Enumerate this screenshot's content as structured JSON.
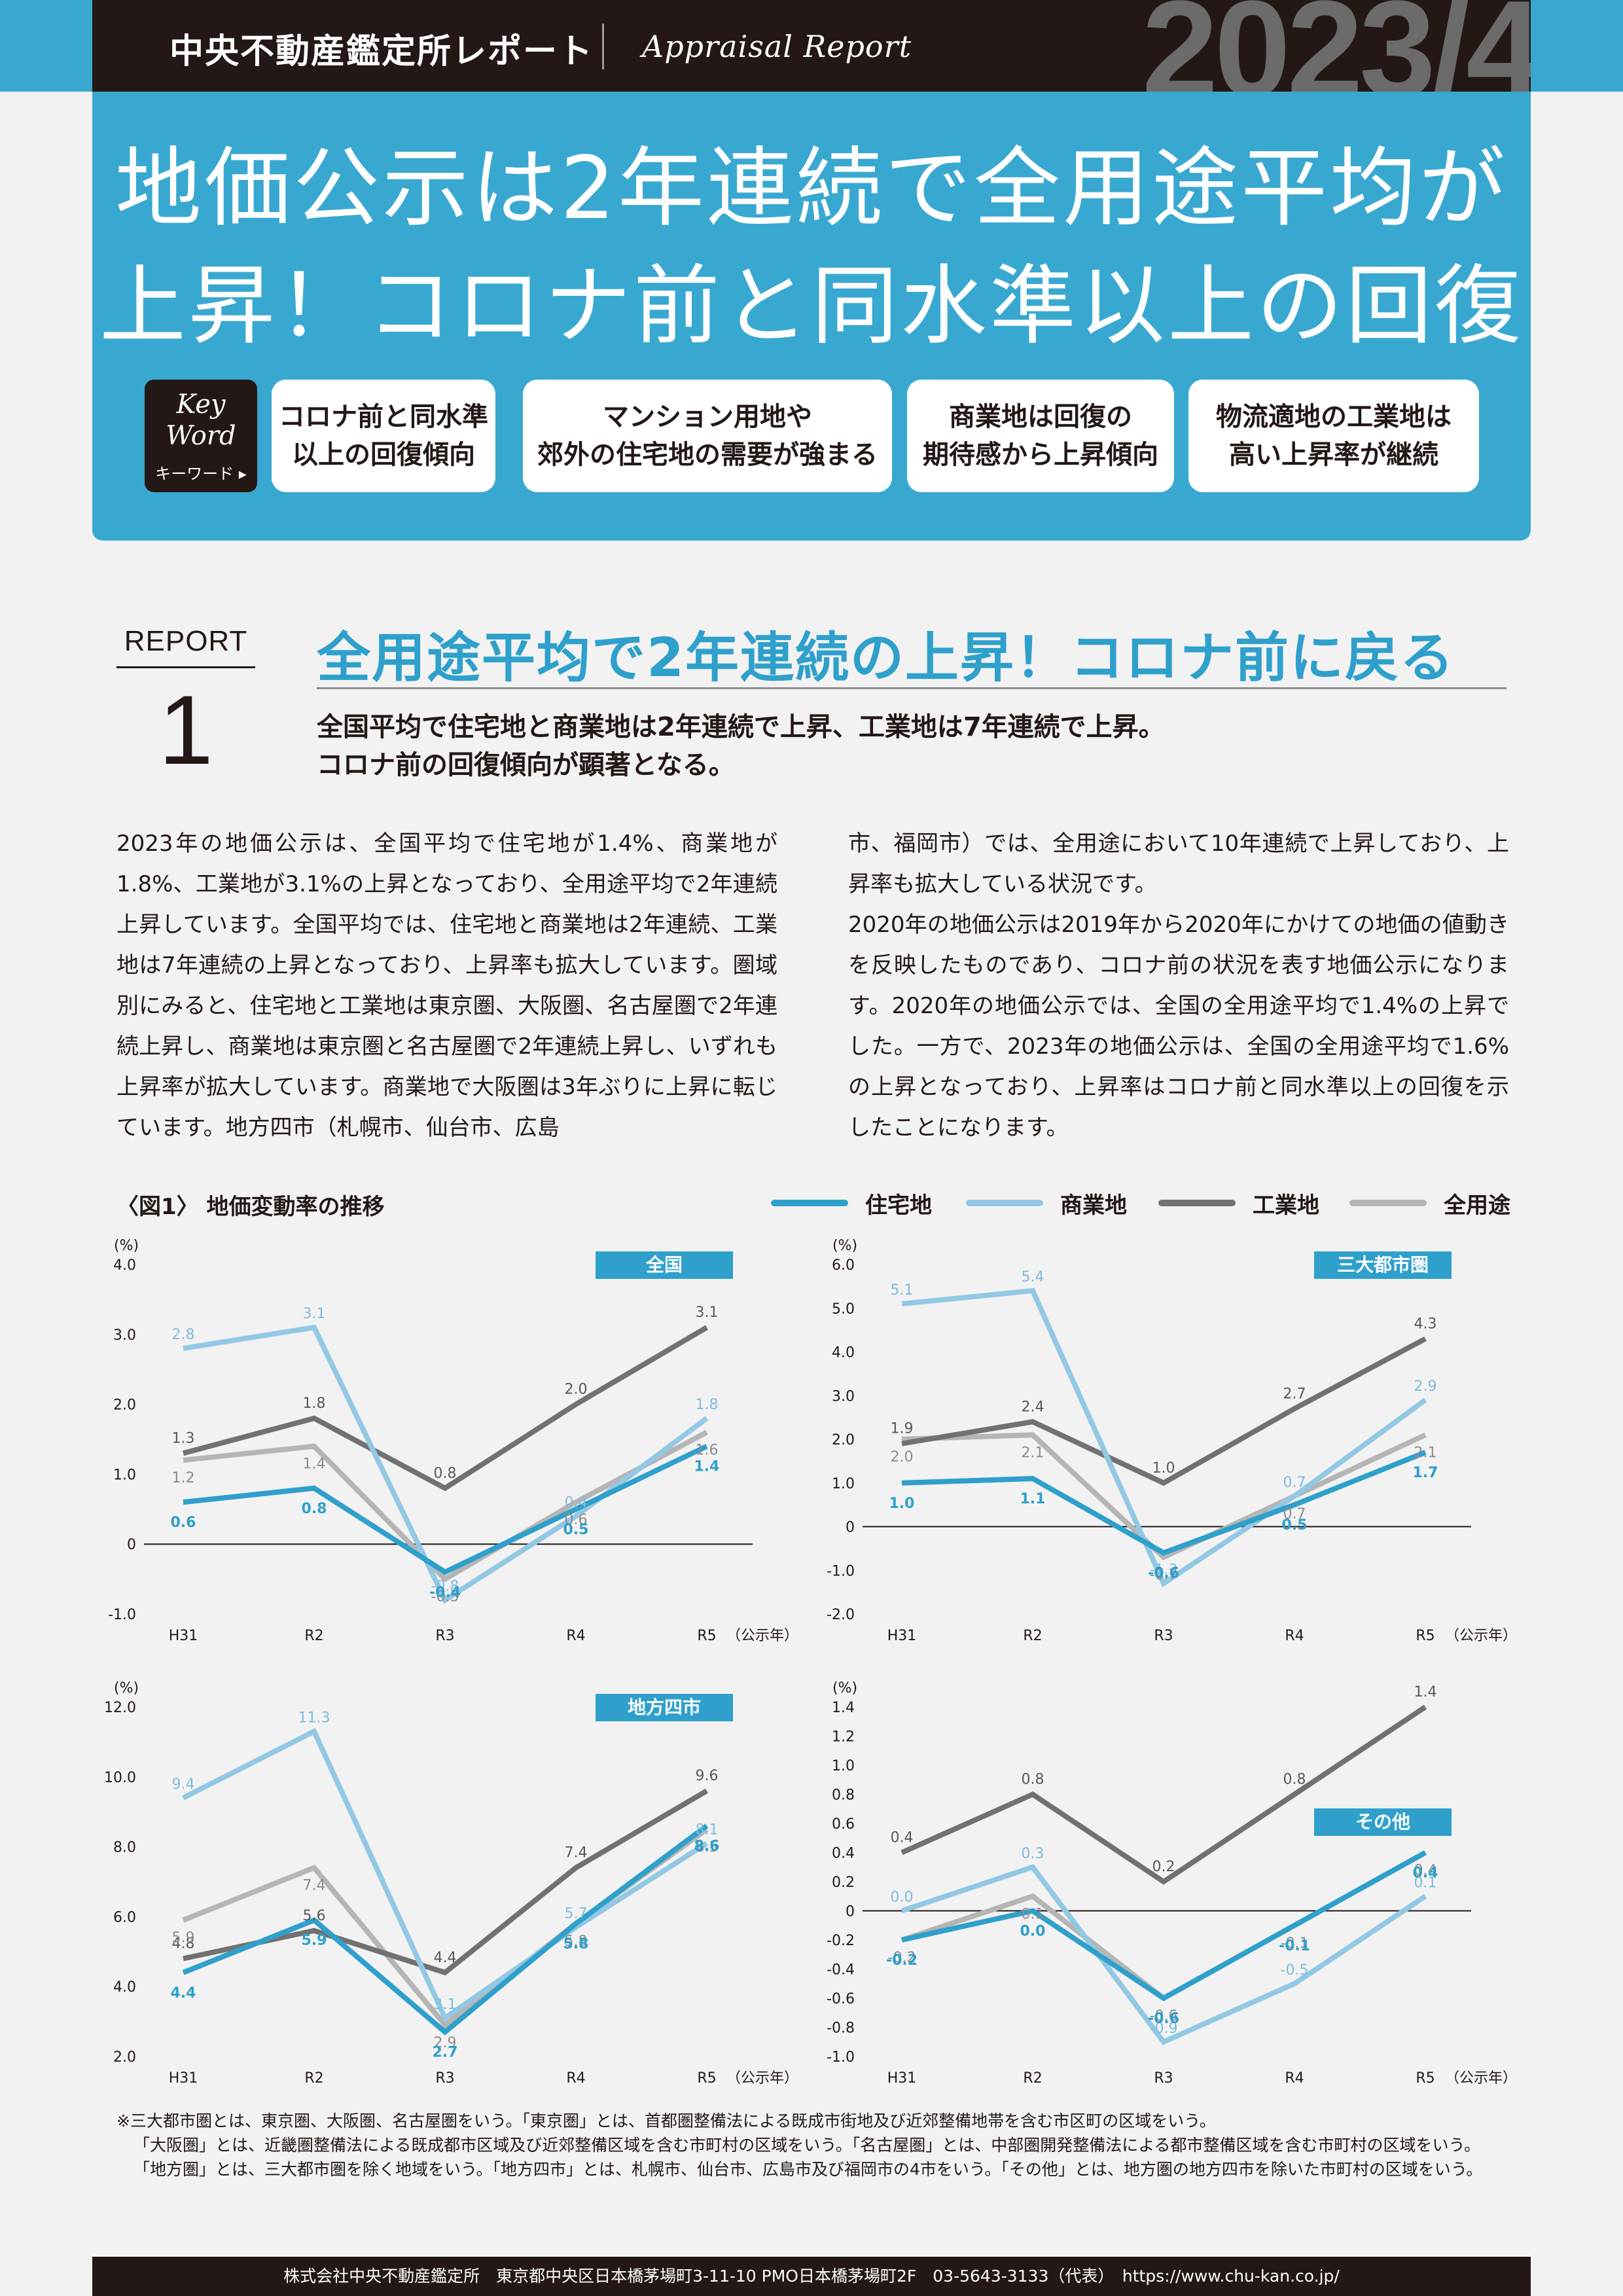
{
  "header": {
    "brand": "中央不動産鑑定所レポート",
    "brand_sub": "Appraisal Report",
    "issue": "2023/4"
  },
  "hero": {
    "title_line1": "地価公示は2年連続で全用途平均が",
    "title_line2": "上昇！コロナ前と同水準以上の回復",
    "keyword_badge": {
      "line1": "Key",
      "line2": "Word",
      "label": "キーワード ▸"
    },
    "keywords": [
      {
        "line1": "コロナ前と同水準",
        "line2": "以上の回復傾向"
      },
      {
        "line1": "マンション用地や",
        "line2": "郊外の住宅地の需要が強まる"
      },
      {
        "line1": "商業地は回復の",
        "line2": "期待感から上昇傾向"
      },
      {
        "line1": "物流適地の工業地は",
        "line2": "高い上昇率が継続"
      }
    ]
  },
  "report": {
    "label": "REPORT",
    "number": "1",
    "title": "全用途平均で2年連続の上昇！コロナ前に戻る",
    "lead_line1": "全国平均で住宅地と商業地は2年連続で上昇、工業地は7年連続で上昇。",
    "lead_line2": "コロナ前の回復傾向が顕著となる。",
    "body_left": "2023年の地価公示は、全国平均で住宅地が1.4%、商業地が1.8%、工業地が3.1%の上昇となっており、全用途平均で2年連続上昇しています。全国平均では、住宅地と商業地は2年連続、工業地は7年連続の上昇となっており、上昇率も拡大しています。圏域別にみると、住宅地と工業地は東京圏、大阪圏、名古屋圏で2年連続上昇し、商業地は東京圏と名古屋圏で2年連続上昇し、いずれも上昇率が拡大しています。商業地で大阪圏は3年ぶりに上昇に転じています。地方四市（札幌市、仙台市、広島",
    "body_right": "市、福岡市）では、全用途において10年連続で上昇しており、上昇率も拡大している状況です。\n2020年の地価公示は2019年から2020年にかけての地価の値動きを反映したものであり、コロナ前の状況を表す地価公示になります。2020年の地価公示では、全国の全用途平均で1.4%の上昇でした。一方で、2023年の地価公示は、全国の全用途平均で1.6%の上昇となっており、上昇率はコロナ前と同水準以上の回復を示したことになります。"
  },
  "figure": {
    "title": "〈図1〉 地価変動率の推移",
    "legend": [
      {
        "name": "住宅地",
        "color": "#2ea0cb"
      },
      {
        "name": "商業地",
        "color": "#92c8e4"
      },
      {
        "name": "工業地",
        "color": "#727171"
      },
      {
        "name": "全用途",
        "color": "#b5b5b6"
      }
    ]
  },
  "chart_data": [
    {
      "type": "line",
      "title": "全国",
      "ylabel": "(%)",
      "xlabel": "（公示年）",
      "categories": [
        "H31",
        "R2",
        "R3",
        "R4",
        "R5"
      ],
      "ylim": [
        -1.0,
        4.0
      ],
      "yticks": [
        "4.0",
        "3.0",
        "2.0",
        "1.0",
        "0",
        "-1.0"
      ],
      "series": [
        {
          "name": "住宅地",
          "values": [
            0.6,
            0.8,
            -0.4,
            0.5,
            1.4
          ]
        },
        {
          "name": "商業地",
          "values": [
            2.8,
            3.1,
            -0.8,
            0.4,
            1.8
          ]
        },
        {
          "name": "工業地",
          "values": [
            1.3,
            1.8,
            0.8,
            2.0,
            3.1
          ]
        },
        {
          "name": "全用途",
          "values": [
            1.2,
            1.4,
            -0.5,
            0.6,
            1.6
          ]
        }
      ],
      "labels": [
        {
          "s": 1,
          "i": 0,
          "t": "2.8"
        },
        {
          "s": 1,
          "i": 1,
          "t": "3.1"
        },
        {
          "s": 1,
          "i": 2,
          "t": "-0.8"
        },
        {
          "s": 1,
          "i": 3,
          "t": "0.4"
        },
        {
          "s": 1,
          "i": 4,
          "t": "1.8"
        },
        {
          "s": 2,
          "i": 0,
          "t": "1.3"
        },
        {
          "s": 2,
          "i": 1,
          "t": "1.8"
        },
        {
          "s": 2,
          "i": 2,
          "t": "0.8"
        },
        {
          "s": 2,
          "i": 3,
          "t": "2.0"
        },
        {
          "s": 2,
          "i": 4,
          "t": "3.1"
        },
        {
          "s": 3,
          "i": 0,
          "t": "1.2"
        },
        {
          "s": 3,
          "i": 1,
          "t": "1.4"
        },
        {
          "s": 3,
          "i": 2,
          "t": "-0.5"
        },
        {
          "s": 3,
          "i": 3,
          "t": "0.6"
        },
        {
          "s": 3,
          "i": 4,
          "t": "1.6"
        },
        {
          "s": 0,
          "i": 0,
          "t": "0.6"
        },
        {
          "s": 0,
          "i": 1,
          "t": "0.8"
        },
        {
          "s": 0,
          "i": 2,
          "t": "-0.4"
        },
        {
          "s": 0,
          "i": 3,
          "t": "0.5"
        },
        {
          "s": 0,
          "i": 4,
          "t": "1.4"
        }
      ]
    },
    {
      "type": "line",
      "title": "三大都市圏",
      "ylabel": "(%)",
      "xlabel": "（公示年）",
      "categories": [
        "H31",
        "R2",
        "R3",
        "R4",
        "R5"
      ],
      "ylim": [
        -2.0,
        6.0
      ],
      "yticks": [
        "6.0",
        "5.0",
        "4.0",
        "3.0",
        "2.0",
        "1.0",
        "0",
        "-1.0",
        "-2.0"
      ],
      "series": [
        {
          "name": "住宅地",
          "values": [
            1.0,
            1.1,
            -0.6,
            0.5,
            1.7
          ]
        },
        {
          "name": "商業地",
          "values": [
            5.1,
            5.4,
            -1.3,
            0.7,
            2.9
          ]
        },
        {
          "name": "工業地",
          "values": [
            1.9,
            2.4,
            1.0,
            2.7,
            4.3
          ]
        },
        {
          "name": "全用途",
          "values": [
            2.0,
            2.1,
            -0.7,
            0.7,
            2.1
          ]
        }
      ],
      "labels": [
        {
          "s": 1,
          "i": 0,
          "t": "5.1"
        },
        {
          "s": 1,
          "i": 1,
          "t": "5.4"
        },
        {
          "s": 1,
          "i": 2,
          "t": "-1.3"
        },
        {
          "s": 1,
          "i": 3,
          "t": "0.7"
        },
        {
          "s": 1,
          "i": 4,
          "t": "2.9"
        },
        {
          "s": 2,
          "i": 0,
          "t": "1.9"
        },
        {
          "s": 2,
          "i": 1,
          "t": "2.4"
        },
        {
          "s": 2,
          "i": 2,
          "t": "1.0"
        },
        {
          "s": 2,
          "i": 3,
          "t": "2.7"
        },
        {
          "s": 2,
          "i": 4,
          "t": "4.3"
        },
        {
          "s": 3,
          "i": 0,
          "t": "2.0"
        },
        {
          "s": 3,
          "i": 1,
          "t": "2.1"
        },
        {
          "s": 3,
          "i": 2,
          "t": "-0.7"
        },
        {
          "s": 3,
          "i": 3,
          "t": "0.7"
        },
        {
          "s": 3,
          "i": 4,
          "t": "2.1"
        },
        {
          "s": 0,
          "i": 0,
          "t": "1.0"
        },
        {
          "s": 0,
          "i": 1,
          "t": "1.1"
        },
        {
          "s": 0,
          "i": 2,
          "t": "-0.6"
        },
        {
          "s": 0,
          "i": 3,
          "t": "0.5"
        },
        {
          "s": 0,
          "i": 4,
          "t": "1.7"
        }
      ]
    },
    {
      "type": "line",
      "title": "地方四市",
      "ylabel": "(%)",
      "xlabel": "（公示年）",
      "categories": [
        "H31",
        "R2",
        "R3",
        "R4",
        "R5"
      ],
      "ylim": [
        2.0,
        12.0
      ],
      "yticks": [
        "12.0",
        "10.0",
        "8.0",
        "6.0",
        "4.0",
        "2.0"
      ],
      "series": [
        {
          "name": "住宅地",
          "values": [
            4.4,
            5.9,
            2.7,
            5.8,
            8.6
          ]
        },
        {
          "name": "商業地",
          "values": [
            9.4,
            11.3,
            3.1,
            5.7,
            8.1
          ]
        },
        {
          "name": "工業地",
          "values": [
            4.8,
            5.6,
            4.4,
            7.4,
            9.6
          ]
        },
        {
          "name": "全用途",
          "values": [
            5.9,
            7.4,
            2.9,
            5.8,
            8.5
          ]
        }
      ],
      "labels": [
        {
          "s": 1,
          "i": 0,
          "t": "9.4"
        },
        {
          "s": 1,
          "i": 1,
          "t": "11.3"
        },
        {
          "s": 1,
          "i": 2,
          "t": "3.1"
        },
        {
          "s": 1,
          "i": 3,
          "t": "5.7"
        },
        {
          "s": 1,
          "i": 4,
          "t": "8.1"
        },
        {
          "s": 2,
          "i": 0,
          "t": "4.8"
        },
        {
          "s": 2,
          "i": 1,
          "t": "5.6"
        },
        {
          "s": 2,
          "i": 2,
          "t": "4.4"
        },
        {
          "s": 2,
          "i": 3,
          "t": "7.4"
        },
        {
          "s": 2,
          "i": 4,
          "t": "9.6"
        },
        {
          "s": 3,
          "i": 0,
          "t": "5.9"
        },
        {
          "s": 3,
          "i": 1,
          "t": "7.4"
        },
        {
          "s": 3,
          "i": 2,
          "t": "2.9"
        },
        {
          "s": 3,
          "i": 3,
          "t": "5.8"
        },
        {
          "s": 3,
          "i": 4,
          "t": "8.5"
        },
        {
          "s": 0,
          "i": 0,
          "t": "4.4"
        },
        {
          "s": 0,
          "i": 1,
          "t": "5.9"
        },
        {
          "s": 0,
          "i": 2,
          "t": "2.7"
        },
        {
          "s": 0,
          "i": 3,
          "t": "5.8"
        },
        {
          "s": 0,
          "i": 4,
          "t": "8.6"
        }
      ]
    },
    {
      "type": "line",
      "title": "その他",
      "ylabel": "(%)",
      "xlabel": "（公示年）",
      "categories": [
        "H31",
        "R2",
        "R3",
        "R4",
        "R5"
      ],
      "ylim": [
        -1.0,
        1.4
      ],
      "yticks": [
        "1.4",
        "1.2",
        "1.0",
        "0.8",
        "0.6",
        "0.4",
        "0.2",
        "0",
        "-0.2",
        "-0.4",
        "-0.6",
        "-0.8",
        "-1.0"
      ],
      "series": [
        {
          "name": "住宅地",
          "values": [
            -0.2,
            0.0,
            -0.6,
            -0.1,
            0.4
          ]
        },
        {
          "name": "商業地",
          "values": [
            0.0,
            0.3,
            -0.9,
            -0.5,
            0.1
          ]
        },
        {
          "name": "工業地",
          "values": [
            0.4,
            0.8,
            0.2,
            0.8,
            1.4
          ]
        },
        {
          "name": "全用途",
          "values": [
            -0.2,
            0.1,
            -0.6,
            -0.1,
            0.4
          ]
        }
      ],
      "labels": [
        {
          "s": 1,
          "i": 0,
          "t": "0.0"
        },
        {
          "s": 1,
          "i": 1,
          "t": "0.3"
        },
        {
          "s": 1,
          "i": 2,
          "t": "-0.9"
        },
        {
          "s": 1,
          "i": 3,
          "t": "-0.5"
        },
        {
          "s": 1,
          "i": 4,
          "t": "0.1"
        },
        {
          "s": 2,
          "i": 0,
          "t": "0.4"
        },
        {
          "s": 2,
          "i": 1,
          "t": "0.8"
        },
        {
          "s": 2,
          "i": 2,
          "t": "0.2"
        },
        {
          "s": 2,
          "i": 3,
          "t": "0.8"
        },
        {
          "s": 2,
          "i": 4,
          "t": "1.4"
        },
        {
          "s": 3,
          "i": 0,
          "t": "-0.2"
        },
        {
          "s": 3,
          "i": 1,
          "t": "0.1"
        },
        {
          "s": 3,
          "i": 2,
          "t": "-0.6"
        },
        {
          "s": 3,
          "i": 3,
          "t": "-0.1"
        },
        {
          "s": 3,
          "i": 4,
          "t": "0.4"
        },
        {
          "s": 0,
          "i": 0,
          "t": "-0.2"
        },
        {
          "s": 0,
          "i": 1,
          "t": "0.0"
        },
        {
          "s": 0,
          "i": 2,
          "t": "-0.6"
        },
        {
          "s": 0,
          "i": 3,
          "t": "-0.1"
        },
        {
          "s": 0,
          "i": 4,
          "t": "0.4"
        }
      ]
    }
  ],
  "notes": {
    "line1": "※三大都市圏とは、東京圏、大阪圏、名古屋圏をいう。「東京圏」とは、首都圏整備法による既成市街地及び近郊整備地帯を含む市区町の区域をいう。",
    "line2": "「大阪圏」とは、近畿圏整備法による既成都市区域及び近郊整備区域を含む市町村の区域をいう。「名古屋圏」とは、中部圏開発整備法による都市整備区域を含む市町村の区域をいう。",
    "line3": "「地方圏」とは、三大都市圏を除く地域をいう。「地方四市」とは、札幌市、仙台市、広島市及び福岡市の4市をいう。「その他」とは、地方圏の地方四市を除いた市町村の区域をいう。"
  },
  "footer": {
    "text": "株式会社中央不動産鑑定所　東京都中央区日本橋茅場町3-11-10 PMO日本橋茅場町2F　03-5643-3133（代表）　https://www.chu-kan.co.jp/"
  }
}
